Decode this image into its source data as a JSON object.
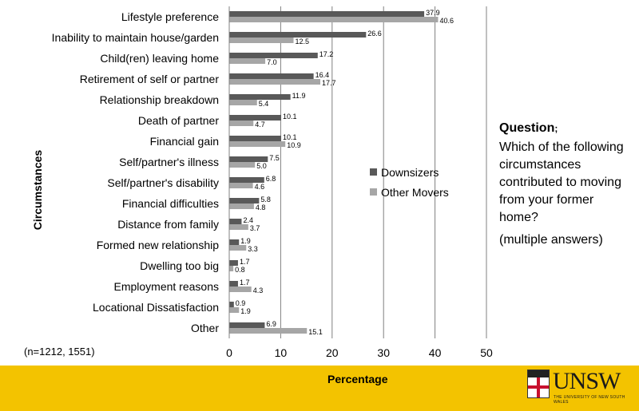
{
  "chart_data": {
    "type": "bar",
    "orientation": "horizontal",
    "categories": [
      "Lifestyle preference",
      "Inability to maintain house/garden",
      "Child(ren) leaving home",
      "Retirement of self or partner",
      "Relationship breakdown",
      "Death of partner",
      "Financial gain",
      "Self/partner's illness",
      "Self/partner's disability",
      "Financial difficulties",
      "Distance from family",
      "Formed new relationship",
      "Dwelling too big",
      "Employment reasons",
      "Locational Dissatisfaction",
      "Other"
    ],
    "series": [
      {
        "name": "Downsizers",
        "color": "#595959",
        "values": [
          37.9,
          26.6,
          17.2,
          16.4,
          11.9,
          10.1,
          10.1,
          7.5,
          6.8,
          5.8,
          2.4,
          1.9,
          1.7,
          1.7,
          0.9,
          6.9
        ]
      },
      {
        "name": "Other Movers",
        "color": "#a6a6a6",
        "values": [
          40.6,
          12.5,
          7.0,
          17.7,
          5.4,
          4.7,
          10.9,
          5.0,
          4.6,
          4.8,
          3.7,
          3.3,
          0.8,
          4.3,
          1.9,
          15.1
        ]
      }
    ],
    "data_labels": {
      "Downsizers": [
        "37.9",
        "26.6",
        "17.2",
        "16.4",
        "11.9",
        "10.1",
        "10.1",
        "7.5",
        "6.8",
        "5.8",
        "2.4",
        "1.9",
        "1.7",
        "1.7",
        "0.9",
        "6.9"
      ],
      "Other Movers": [
        "40.6",
        "12.5",
        "7.0",
        "17.7",
        "5.4",
        "4.7",
        "10.9",
        "5.0",
        "4.6",
        "4.8",
        "3.7",
        "3.3",
        "0.8",
        "4.3",
        "1.9",
        "15.1"
      ]
    },
    "xlabel": "Percentage",
    "ylabel": "Circumstances",
    "xlim": [
      0,
      50
    ],
    "xticks": [
      "0",
      "10",
      "20",
      "30",
      "40",
      "50"
    ],
    "xtick_values": [
      0,
      10,
      20,
      30,
      40,
      50
    ],
    "grid": "vertical",
    "legend_position": "right"
  },
  "question": {
    "title": "Question",
    "title_suffix": ";",
    "body": "Which of the following circumstances contributed to moving from your former home?",
    "note": "(multiple answers)"
  },
  "sample_note": "(n=1212, 1551)",
  "logo": {
    "word": "UNSW",
    "subtitle": "THE UNIVERSITY OF NEW SOUTH WALES"
  },
  "colors": {
    "footer_band": "#f3c300",
    "gridline": "#808080"
  }
}
